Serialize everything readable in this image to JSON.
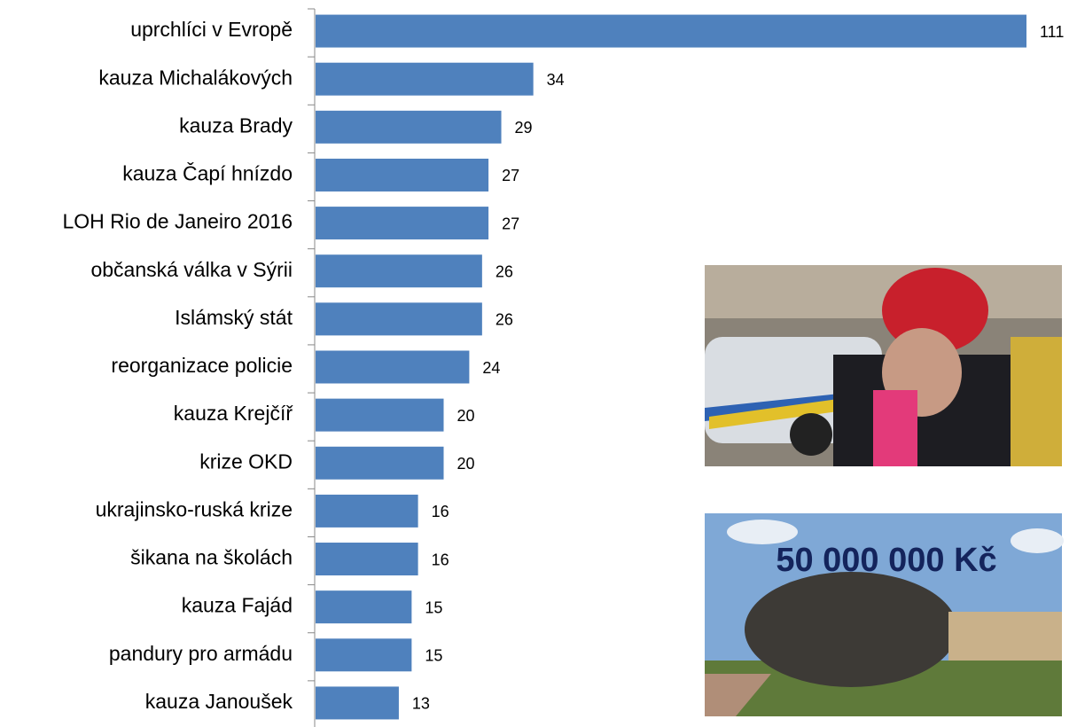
{
  "chart_data": {
    "type": "barh",
    "categories": [
      "uprchlíci v Evropě",
      "kauza Michalákových",
      "kauza Brady",
      "kauza Čapí hnízdo",
      "LOH Rio de Janeiro 2016",
      "občanská válka v Sýrii",
      "Islámský stát",
      "reorganizace policie",
      "kauza Krejčíř",
      "krize OKD",
      "ukrajinsko-ruská krize",
      "šikana na školách",
      "kauza Fajád",
      "pandury pro armádu",
      "kauza Janoušek"
    ],
    "values": [
      111,
      34,
      29,
      27,
      27,
      26,
      26,
      24,
      20,
      20,
      16,
      16,
      15,
      15,
      13
    ],
    "color": "#4f81bd",
    "xlim": [
      0,
      111
    ],
    "annotations": [
      "50 000 000 Kč"
    ]
  }
}
